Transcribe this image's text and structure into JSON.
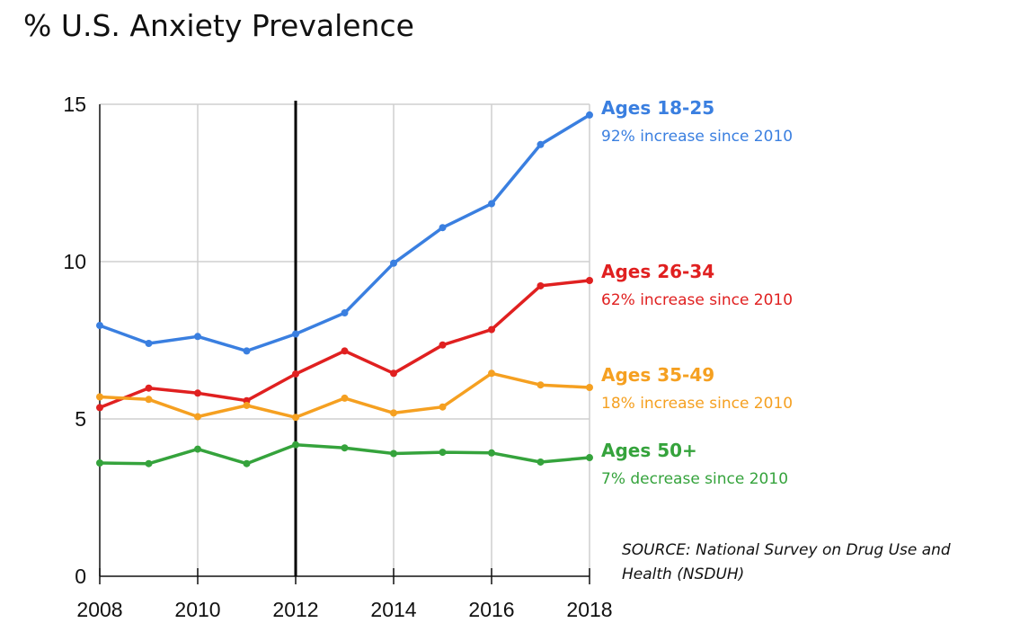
{
  "chart_data": {
    "type": "line",
    "title": "% U.S. Anxiety Prevalence",
    "xlabel": "",
    "ylabel": "",
    "x": [
      2008,
      2009,
      2010,
      2011,
      2012,
      2013,
      2014,
      2015,
      2016,
      2017,
      2018
    ],
    "x_ticks": [
      "2008",
      "2010",
      "2012",
      "2014",
      "2016",
      "2018"
    ],
    "y_ticks": [
      "0",
      "5",
      "10",
      "15"
    ],
    "xlim": [
      2008,
      2018
    ],
    "ylim": [
      0,
      15
    ],
    "grid": true,
    "marker_line_x": 2012,
    "series": [
      {
        "name": "Ages 18-25",
        "note": "92% increase since 2010",
        "color": "#3a7fe0",
        "values": [
          7.97,
          7.4,
          7.62,
          7.16,
          7.7,
          8.37,
          9.95,
          11.08,
          11.84,
          13.72,
          14.66
        ]
      },
      {
        "name": "Ages 26-34",
        "note": "62% increase since 2010",
        "color": "#e02020",
        "values": [
          5.36,
          5.98,
          5.82,
          5.58,
          6.43,
          7.16,
          6.45,
          7.35,
          7.84,
          9.23,
          9.4
        ]
      },
      {
        "name": "Ages 35-49",
        "note": "18% increase since 2010",
        "color": "#f5a021",
        "values": [
          5.7,
          5.62,
          5.07,
          5.43,
          5.05,
          5.66,
          5.19,
          5.38,
          6.45,
          6.08,
          6.0
        ]
      },
      {
        "name": "Ages 50+",
        "note": "7% decrease since 2010",
        "color": "#35a33c",
        "values": [
          3.6,
          3.58,
          4.04,
          3.58,
          4.18,
          4.08,
          3.9,
          3.94,
          3.92,
          3.63,
          3.77
        ]
      }
    ],
    "source": [
      "SOURCE: National Survey on Drug Use and",
      "Health (NSDUH)"
    ]
  }
}
